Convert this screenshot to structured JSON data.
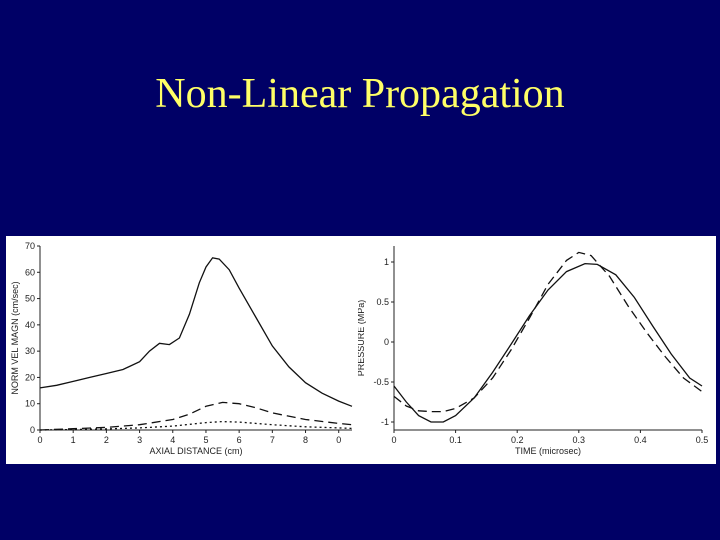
{
  "slide": {
    "title": "Non-Linear Propagation"
  },
  "chart_data": [
    {
      "type": "line",
      "xlabel": "AXIAL DISTANCE (cm)",
      "ylabel": "NORM VEL MAGN (cm/sec)",
      "xlim": [
        0,
        9.4
      ],
      "ylim": [
        0,
        70
      ],
      "xticks": [
        "0",
        "1",
        "2",
        "3",
        "4",
        "5",
        "6",
        "7",
        "8",
        "0"
      ],
      "yticks": [
        "0",
        "10",
        "20",
        "30",
        "40",
        "50",
        "60",
        "70"
      ],
      "series": [
        {
          "style": "solid",
          "x": [
            0,
            0.5,
            1,
            1.5,
            2,
            2.5,
            3,
            3.3,
            3.6,
            3.9,
            4.2,
            4.5,
            4.8,
            5.0,
            5.2,
            5.4,
            5.7,
            6.0,
            6.5,
            7.0,
            7.5,
            8.0,
            8.5,
            9.0,
            9.4
          ],
          "y": [
            16,
            17,
            18.5,
            20,
            21.5,
            23,
            26,
            30,
            33,
            32.5,
            35,
            44,
            56,
            62,
            65.5,
            65,
            61,
            54,
            43,
            32,
            24,
            18,
            14,
            11,
            9
          ]
        },
        {
          "style": "dashed",
          "x": [
            0,
            1,
            2,
            3,
            4,
            4.5,
            5.0,
            5.5,
            6.0,
            6.5,
            7.0,
            8.0,
            9.0,
            9.4
          ],
          "y": [
            0,
            0.5,
            1,
            2,
            4,
            6,
            9,
            10.5,
            10,
            8.5,
            6.5,
            4,
            2.5,
            2
          ]
        },
        {
          "style": "dotted",
          "x": [
            0,
            1,
            2,
            3,
            4,
            5,
            5.5,
            6.0,
            7.0,
            8.0,
            9.0,
            9.4
          ],
          "y": [
            0,
            0.2,
            0.4,
            0.8,
            1.5,
            2.8,
            3.2,
            3,
            2,
            1.2,
            0.8,
            0.6
          ]
        }
      ]
    },
    {
      "type": "line",
      "xlabel": "TIME (microsec)",
      "ylabel": "PRESSURE (MPa)",
      "xlim": [
        0,
        0.5
      ],
      "ylim": [
        -1.1,
        1.2
      ],
      "xticks": [
        "0",
        "0.1",
        "0.2",
        "0.3",
        "0.4",
        "0.5"
      ],
      "yticks": [
        "-1",
        "-0.5",
        "0",
        "0.5",
        "1"
      ],
      "series": [
        {
          "style": "solid",
          "x": [
            0,
            0.02,
            0.04,
            0.06,
            0.08,
            0.1,
            0.13,
            0.16,
            0.19,
            0.22,
            0.25,
            0.28,
            0.31,
            0.33,
            0.36,
            0.39,
            0.42,
            0.45,
            0.48,
            0.5
          ],
          "y": [
            -0.55,
            -0.75,
            -0.92,
            -1.0,
            -1.0,
            -0.92,
            -0.7,
            -0.38,
            -0.03,
            0.33,
            0.65,
            0.88,
            0.98,
            0.97,
            0.84,
            0.56,
            0.2,
            -0.15,
            -0.45,
            -0.55
          ]
        },
        {
          "style": "dashed",
          "x": [
            0,
            0.02,
            0.04,
            0.06,
            0.08,
            0.1,
            0.13,
            0.16,
            0.19,
            0.22,
            0.25,
            0.28,
            0.3,
            0.32,
            0.35,
            0.38,
            0.41,
            0.44,
            0.47,
            0.5
          ],
          "y": [
            -0.68,
            -0.8,
            -0.86,
            -0.87,
            -0.87,
            -0.83,
            -0.7,
            -0.45,
            -0.1,
            0.3,
            0.72,
            1.02,
            1.12,
            1.08,
            0.82,
            0.45,
            0.12,
            -0.18,
            -0.45,
            -0.62
          ]
        }
      ]
    }
  ]
}
